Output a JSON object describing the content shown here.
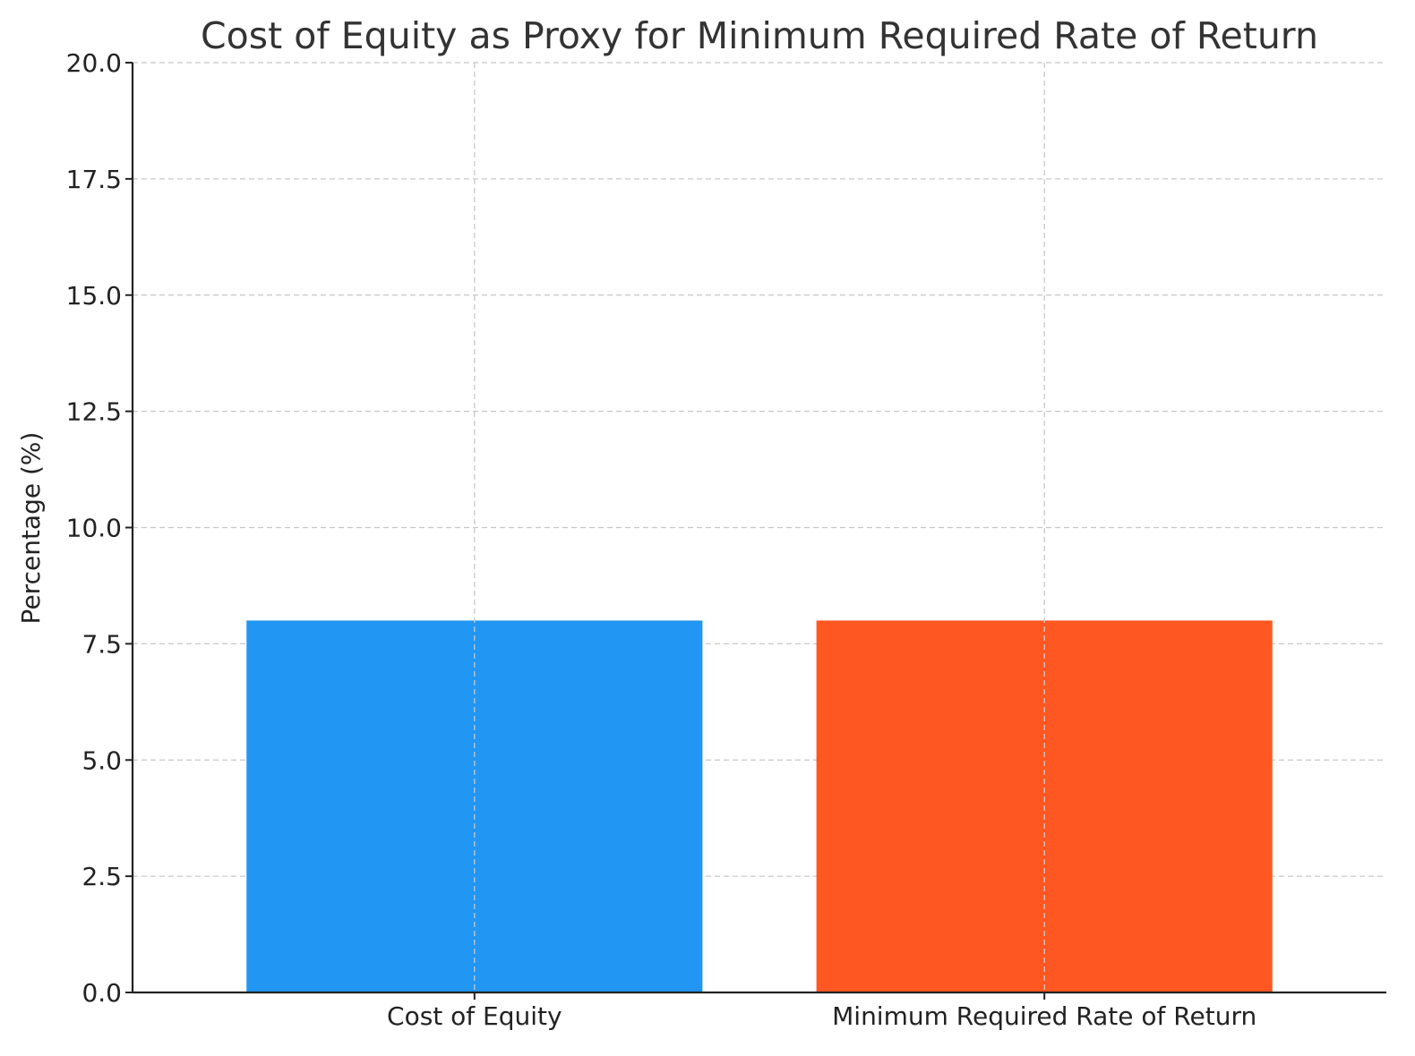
{
  "chart_data": {
    "type": "bar",
    "title": "Cost of Equity as Proxy for Minimum Required Rate of Return",
    "xlabel": "",
    "ylabel": "Percentage (%)",
    "categories": [
      "Cost of Equity",
      "Minimum Required Rate of Return"
    ],
    "values": [
      8,
      8
    ],
    "colors": [
      "#2196F3",
      "#FF5722"
    ],
    "ylim": [
      0,
      20
    ],
    "yticks": [
      0,
      2.5,
      5,
      7.5,
      10,
      12.5,
      15,
      17.5,
      20
    ],
    "ytick_labels": [
      "0.0",
      "2.5",
      "5.0",
      "7.5",
      "10.0",
      "12.5",
      "15.0",
      "17.5",
      "20.0"
    ],
    "grid": true,
    "legend": false
  }
}
